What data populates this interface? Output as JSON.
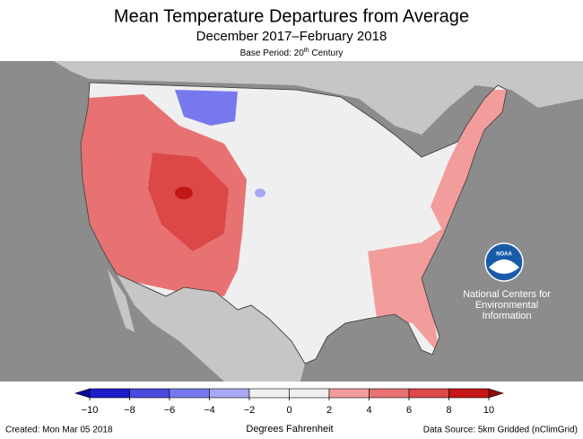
{
  "title": "Mean Temperature Departures from Average",
  "subtitle": "December 2017–February 2018",
  "base_period": {
    "prefix": "Base Period: 20",
    "sup": "th",
    "suffix": " Century"
  },
  "logo": {
    "text": "NOAA",
    "lines": [
      "National Centers for",
      "Environmental",
      "Information"
    ]
  },
  "legend": {
    "label": "Degrees Fahrenheit",
    "ticks": [
      {
        "value": -10,
        "label": "−10"
      },
      {
        "value": -8,
        "label": "−8"
      },
      {
        "value": -6,
        "label": "−6"
      },
      {
        "value": -4,
        "label": "−4"
      },
      {
        "value": -2,
        "label": "−2"
      },
      0,
      2,
      4,
      6,
      8,
      10
    ],
    "colors": [
      "#1c1cc8",
      "#4a4ade",
      "#7878ee",
      "#a8a8f6",
      "#f0f0f0",
      "#f0f0f0",
      "#f29c9c",
      "#e87272",
      "#dc4848",
      "#c41616"
    ],
    "under_color": "#0a0a9a",
    "over_color": "#8e0a0a"
  },
  "footer": {
    "created": "Created: Mon Mar 05 2018",
    "source": "Data Source: 5km Gridded (nClimGrid)"
  }
}
